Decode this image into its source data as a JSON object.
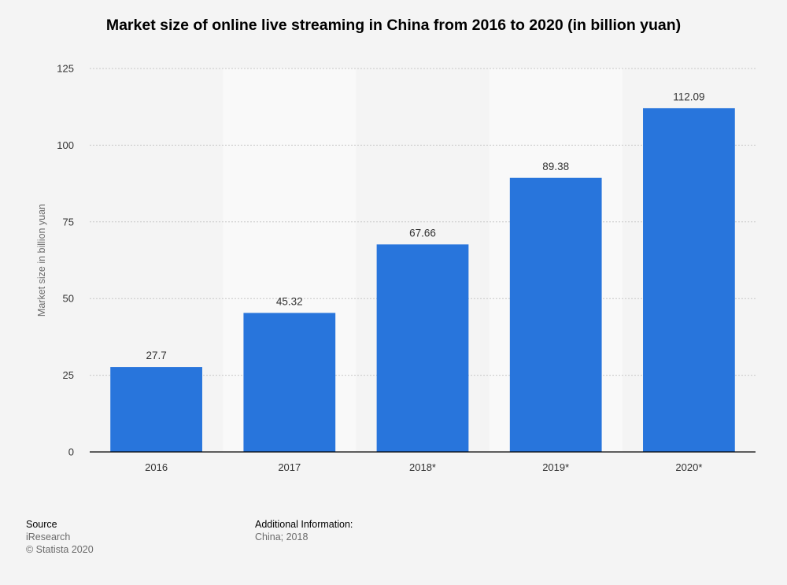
{
  "chart_data": {
    "type": "bar",
    "title": "Market size of online live streaming in China from 2016 to 2020 (in billion yuan)",
    "xlabel": "",
    "ylabel": "Market size in billion yuan",
    "categories": [
      "2016",
      "2017",
      "2018*",
      "2019*",
      "2020*"
    ],
    "values": [
      27.7,
      45.32,
      67.66,
      89.38,
      112.09
    ],
    "value_labels": [
      "27.7",
      "45.32",
      "67.66",
      "89.38",
      "112.09"
    ],
    "ylim": [
      0,
      125
    ],
    "yticks": [
      0,
      25,
      50,
      75,
      100,
      125
    ],
    "grid": true,
    "bar_color": "#2875dc",
    "grid_color": "#c8c8c8",
    "axis_color": "#000000",
    "band_color": "#f9f9f9",
    "plot_bg": "#f4f4f4"
  },
  "footer": {
    "source_heading": "Source",
    "source_name": "iResearch",
    "copyright": "© Statista 2020",
    "info_heading": "Additional Information:",
    "info_text": "China; 2018"
  }
}
